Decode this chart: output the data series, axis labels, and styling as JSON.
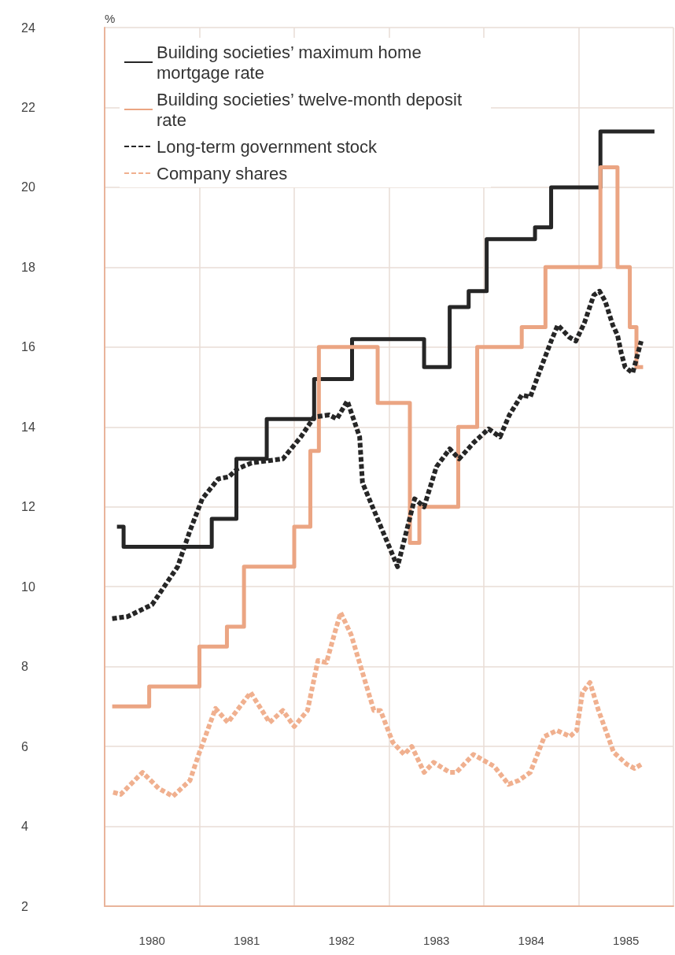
{
  "chart_data": {
    "type": "line",
    "ylabel": "%",
    "xlim": [
      1980,
      1986
    ],
    "xticks": [
      {
        "value": 1980,
        "label": null
      },
      {
        "value": 1980.5,
        "label": "1980"
      },
      {
        "value": 1981,
        "label": null
      },
      {
        "value": 1981.5,
        "label": "1981"
      },
      {
        "value": 1982,
        "label": null
      },
      {
        "value": 1982.5,
        "label": "1982"
      },
      {
        "value": 1983,
        "label": null
      },
      {
        "value": 1983.5,
        "label": "1983"
      },
      {
        "value": 1984,
        "label": null
      },
      {
        "value": 1984.5,
        "label": "1984"
      },
      {
        "value": 1985,
        "label": null
      },
      {
        "value": 1985.5,
        "label": "1985"
      },
      {
        "value": 1986,
        "label": null
      }
    ],
    "ylim": [
      2,
      24
    ],
    "yticks": [
      2,
      4,
      6,
      8,
      10,
      12,
      14,
      16,
      18,
      20,
      22,
      24
    ],
    "grid": true,
    "legend": "top left",
    "marker": "none",
    "series": [
      {
        "name": "Building societies’ maximum home mortgage rate",
        "type": "step",
        "line_style": "solid",
        "color": "#262626",
        "x": [
          1980.13,
          1980.2,
          1981.13,
          1981.39,
          1981.71,
          1982.21,
          1982.61,
          1983.37,
          1983.64,
          1983.84,
          1984.03,
          1984.54,
          1984.71,
          1985.23,
          1985.8
        ],
        "values": [
          11.5,
          11.0,
          11.7,
          13.2,
          14.2,
          15.2,
          16.2,
          15.5,
          17.0,
          17.4,
          18.7,
          19.0,
          20.0,
          21.4,
          21.4
        ]
      },
      {
        "name": "Building societies’ twelve-month deposit rate",
        "type": "step",
        "line_style": "solid",
        "color": "#eba583",
        "x": [
          1980.08,
          1980.47,
          1981.0,
          1981.29,
          1981.47,
          1982.0,
          1982.17,
          1982.26,
          1982.88,
          1983.22,
          1983.32,
          1983.73,
          1983.93,
          1984.4,
          1984.65,
          1985.23,
          1985.41,
          1985.54,
          1985.61,
          1985.68
        ],
        "values": [
          7.0,
          7.5,
          8.5,
          9.0,
          10.5,
          11.5,
          13.4,
          16.0,
          14.6,
          11.1,
          12.0,
          14.0,
          16.0,
          16.5,
          18.0,
          20.5,
          18.0,
          16.5,
          15.5,
          15.5
        ]
      },
      {
        "name": "Long-term government stock",
        "type": "line",
        "line_style": "dashed",
        "color": "#262626",
        "x": [
          1980.08,
          1980.24,
          1980.5,
          1980.77,
          1980.9,
          1981.03,
          1981.2,
          1981.31,
          1981.4,
          1981.55,
          1981.88,
          1982.07,
          1982.21,
          1982.37,
          1982.45,
          1982.56,
          1982.69,
          1982.72,
          1983.09,
          1983.27,
          1983.37,
          1983.5,
          1983.64,
          1983.74,
          1983.89,
          1984.05,
          1984.17,
          1984.27,
          1984.4,
          1984.49,
          1984.59,
          1984.71,
          1984.78,
          1984.9,
          1984.97,
          1985.06,
          1985.16,
          1985.22,
          1985.28,
          1985.36,
          1985.41,
          1985.45,
          1985.49,
          1985.57,
          1985.66
        ],
        "values": [
          9.2,
          9.25,
          9.55,
          10.5,
          11.4,
          12.2,
          12.7,
          12.75,
          12.95,
          13.1,
          13.2,
          13.75,
          14.25,
          14.3,
          14.2,
          14.65,
          13.75,
          12.6,
          10.5,
          12.2,
          12.0,
          13.0,
          13.45,
          13.2,
          13.6,
          13.95,
          13.75,
          14.3,
          14.8,
          14.75,
          15.4,
          16.15,
          16.55,
          16.25,
          16.15,
          16.6,
          17.3,
          17.4,
          17.15,
          16.55,
          16.3,
          15.85,
          15.5,
          15.35,
          16.15
        ]
      },
      {
        "name": "Company shares",
        "type": "line",
        "line_style": "dashed",
        "color": "#f0b08f",
        "x": [
          1980.09,
          1980.17,
          1980.4,
          1980.57,
          1980.72,
          1980.9,
          1981.0,
          1981.17,
          1981.3,
          1981.54,
          1981.74,
          1981.88,
          1982.0,
          1982.14,
          1982.25,
          1982.34,
          1982.44,
          1982.49,
          1982.6,
          1982.84,
          1982.91,
          1983.04,
          1983.16,
          1983.24,
          1983.37,
          1983.47,
          1983.64,
          1983.71,
          1983.89,
          1984.11,
          1984.26,
          1984.37,
          1984.49,
          1984.64,
          1984.77,
          1984.91,
          1984.98,
          1985.04,
          1985.12,
          1985.21,
          1985.37,
          1985.51,
          1985.59,
          1985.66
        ],
        "values": [
          4.85,
          4.8,
          5.35,
          4.95,
          4.75,
          5.15,
          5.85,
          6.95,
          6.6,
          7.35,
          6.6,
          6.9,
          6.5,
          6.9,
          8.15,
          8.1,
          8.95,
          9.35,
          8.8,
          6.9,
          6.9,
          6.1,
          5.8,
          6.0,
          5.35,
          5.6,
          5.35,
          5.35,
          5.8,
          5.5,
          5.05,
          5.15,
          5.35,
          6.25,
          6.4,
          6.25,
          6.4,
          7.35,
          7.6,
          6.9,
          5.85,
          5.55,
          5.45,
          5.55
        ]
      }
    ]
  }
}
